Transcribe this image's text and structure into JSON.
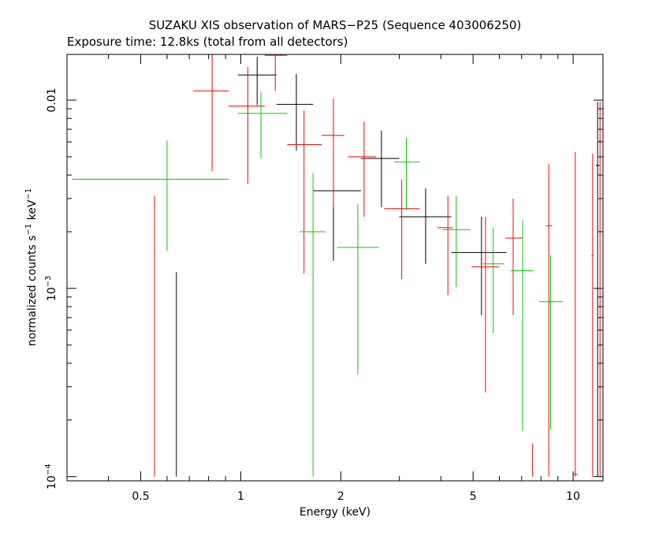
{
  "chart_data": {
    "type": "scatter",
    "title": "SUZAKU XIS observation of MARS−P25 (Sequence 403006250)",
    "subtitle": "Exposure time: 12.8ks (total from all detectors)",
    "xlabel": "Energy (keV)",
    "ylabel": {
      "base": "normalized counts s",
      "sup1": "−1",
      "mid": " keV",
      "sup2": "−1"
    },
    "x_scale": "log",
    "y_scale": "log",
    "xlim": [
      0.3,
      12.3
    ],
    "ylim": [
      9.5e-05,
      0.0175
    ],
    "x_ticks": [
      {
        "value": 0.5,
        "label": "0.5"
      },
      {
        "value": 1,
        "label": "1"
      },
      {
        "value": 2,
        "label": "2"
      },
      {
        "value": 5,
        "label": "5"
      },
      {
        "value": 10,
        "label": "10"
      }
    ],
    "y_ticks": [
      {
        "value": 0.0001,
        "base": "10",
        "exp": "−4"
      },
      {
        "value": 0.001,
        "base": "10",
        "exp": "−3"
      },
      {
        "value": 0.01,
        "label": "0.01"
      }
    ],
    "grid": false,
    "series": [
      {
        "color": "#000000",
        "points": [
          {
            "x": 0.64,
            "x_lo": 0.64,
            "x_hi": 0.64,
            "y": 0.0001,
            "y_lo": 0.0001,
            "y_hi": 0.00122
          },
          {
            "x": 1.12,
            "x_lo": 0.98,
            "x_hi": 1.28,
            "y": 0.0136,
            "y_lo": 0.0094,
            "y_hi": 0.017
          },
          {
            "x": 1.47,
            "x_lo": 1.28,
            "x_hi": 1.65,
            "y": 0.0095,
            "y_lo": 0.0054,
            "y_hi": 0.0138
          },
          {
            "x": 1.9,
            "x_lo": 1.65,
            "x_hi": 2.3,
            "y": 0.0033,
            "y_lo": 0.0014,
            "y_hi": 0.0052
          },
          {
            "x": 2.65,
            "x_lo": 2.3,
            "x_hi": 3.0,
            "y": 0.0049,
            "y_lo": 0.0027,
            "y_hi": 0.0069
          },
          {
            "x": 3.6,
            "x_lo": 3.0,
            "x_hi": 4.3,
            "y": 0.0024,
            "y_lo": 0.00135,
            "y_hi": 0.0034
          },
          {
            "x": 5.3,
            "x_lo": 4.3,
            "x_hi": 6.3,
            "y": 0.00155,
            "y_lo": 0.00072,
            "y_hi": 0.0024
          },
          {
            "x": 11.85,
            "x_lo": 11.7,
            "x_hi": 12.0,
            "y": 0.0045,
            "y_lo": 0.0001,
            "y_hi": 0.0098
          }
        ]
      },
      {
        "color": "#ff0000",
        "points": [
          {
            "x": 0.55,
            "x_lo": 0.55,
            "x_hi": 0.55,
            "y": 0.0001,
            "y_lo": 0.0001,
            "y_hi": 0.0031
          },
          {
            "x": 0.82,
            "x_lo": 0.72,
            "x_hi": 0.92,
            "y": 0.0112,
            "y_lo": 0.0042,
            "y_hi": 0.018
          },
          {
            "x": 1.05,
            "x_lo": 0.92,
            "x_hi": 1.18,
            "y": 0.0093,
            "y_lo": 0.0036,
            "y_hi": 0.015
          },
          {
            "x": 1.27,
            "x_lo": 1.18,
            "x_hi": 1.38,
            "y": 0.0173,
            "y_lo": 0.0112,
            "y_hi": 0.018
          },
          {
            "x": 1.55,
            "x_lo": 1.38,
            "x_hi": 1.75,
            "y": 0.0058,
            "y_lo": 0.0012,
            "y_hi": 0.0088
          },
          {
            "x": 1.9,
            "x_lo": 1.75,
            "x_hi": 2.05,
            "y": 0.0065,
            "y_lo": 0.0027,
            "y_hi": 0.0102
          },
          {
            "x": 2.35,
            "x_lo": 2.1,
            "x_hi": 2.55,
            "y": 0.005,
            "y_lo": 0.0024,
            "y_hi": 0.0077
          },
          {
            "x": 3.05,
            "x_lo": 2.7,
            "x_hi": 3.45,
            "y": 0.00265,
            "y_lo": 0.00112,
            "y_hi": 0.0038
          },
          {
            "x": 4.2,
            "x_lo": 3.9,
            "x_hi": 4.35,
            "y": 0.0021,
            "y_lo": 0.00092,
            "y_hi": 0.0031
          },
          {
            "x": 5.45,
            "x_lo": 4.95,
            "x_hi": 6.0,
            "y": 0.0013,
            "y_lo": 0.00028,
            "y_hi": 0.0024
          },
          {
            "x": 6.6,
            "x_lo": 6.25,
            "x_hi": 7.05,
            "y": 0.00185,
            "y_lo": 0.00072,
            "y_hi": 0.003
          },
          {
            "x": 7.55,
            "x_lo": 7.55,
            "x_hi": 7.55,
            "y": 0.00012,
            "y_lo": 0.0001,
            "y_hi": 0.00015
          },
          {
            "x": 8.45,
            "x_lo": 8.3,
            "x_hi": 8.65,
            "y": 0.00215,
            "y_lo": 0.0001,
            "y_hi": 0.0046
          },
          {
            "x": 10.15,
            "x_lo": 10.05,
            "x_hi": 10.3,
            "y": 0.000103,
            "y_lo": 0.0001,
            "y_hi": 0.0053
          },
          {
            "x": 11.45,
            "x_lo": 11.35,
            "x_hi": 11.55,
            "y": 0.0015,
            "y_lo": 0.0001,
            "y_hi": 0.0052
          },
          {
            "x": 12.05,
            "x_lo": 11.95,
            "x_hi": 12.15,
            "y": 0.0061,
            "y_lo": 0.0001,
            "y_hi": 0.0098
          }
        ]
      },
      {
        "color": "#00cc00",
        "points": [
          {
            "x": 0.6,
            "x_lo": 0.31,
            "x_hi": 0.92,
            "y": 0.0038,
            "y_lo": 0.00158,
            "y_hi": 0.0061
          },
          {
            "x": 1.15,
            "x_lo": 0.98,
            "x_hi": 1.38,
            "y": 0.0085,
            "y_lo": 0.0049,
            "y_hi": 0.011
          },
          {
            "x": 1.65,
            "x_lo": 1.5,
            "x_hi": 1.8,
            "y": 0.002,
            "y_lo": 0.0001,
            "y_hi": 0.0041
          },
          {
            "x": 2.25,
            "x_lo": 1.95,
            "x_hi": 2.6,
            "y": 0.00165,
            "y_lo": 0.00035,
            "y_hi": 0.0028
          },
          {
            "x": 3.15,
            "x_lo": 2.9,
            "x_hi": 3.45,
            "y": 0.0047,
            "y_lo": 0.0026,
            "y_hi": 0.0063
          },
          {
            "x": 4.45,
            "x_lo": 4.05,
            "x_hi": 4.9,
            "y": 0.00205,
            "y_lo": 0.00102,
            "y_hi": 0.0031
          },
          {
            "x": 5.75,
            "x_lo": 5.35,
            "x_hi": 6.2,
            "y": 0.00135,
            "y_lo": 0.00058,
            "y_hi": 0.0021
          },
          {
            "x": 7.05,
            "x_lo": 6.5,
            "x_hi": 7.6,
            "y": 0.00124,
            "y_lo": 0.000175,
            "y_hi": 0.0023
          },
          {
            "x": 8.55,
            "x_lo": 7.9,
            "x_hi": 9.3,
            "y": 0.00085,
            "y_lo": 0.000178,
            "y_hi": 0.0015
          }
        ]
      }
    ]
  }
}
